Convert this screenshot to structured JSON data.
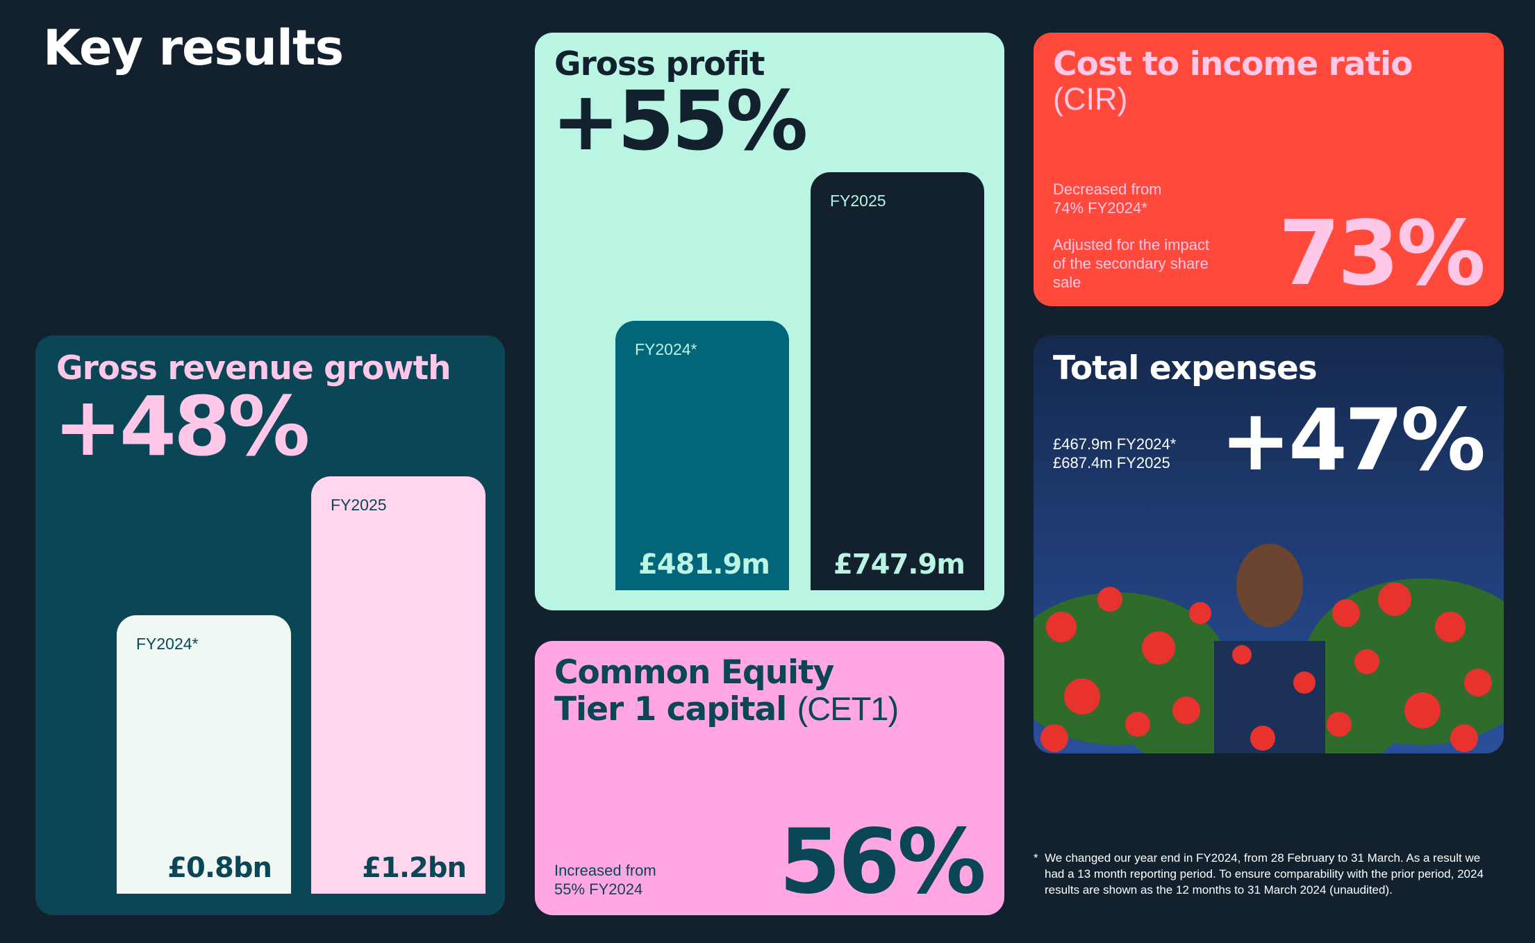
{
  "title": "Key results",
  "gross_revenue": {
    "title": "Gross revenue growth",
    "change": "+48%",
    "bars": [
      {
        "label": "FY2024*",
        "value": 0.8,
        "value_label": "£0.8bn"
      },
      {
        "label": "FY2025",
        "value": 1.2,
        "value_label": "£1.2bn"
      }
    ]
  },
  "gross_profit": {
    "title": "Gross profit",
    "change": "+55%",
    "bars": [
      {
        "label": "FY2024*",
        "value": 481.9,
        "value_label": "£481.9m"
      },
      {
        "label": "FY2025",
        "value": 747.9,
        "value_label": "£747.9m"
      }
    ]
  },
  "cir": {
    "title": "Cost to income ratio",
    "subtitle": "(CIR)",
    "note1": "Decreased from 74% FY2024*",
    "note2": "Adjusted for the impact of the secondary share sale",
    "value": "73%"
  },
  "expenses": {
    "title": "Total expenses",
    "lines": [
      "£467.9m FY2024*",
      "£687.4m FY2025"
    ],
    "value": "+47%"
  },
  "cet1": {
    "title_line1": "Common Equity",
    "title_line2": "Tier 1 capital",
    "title_suffix": "(CET1)",
    "note": "Increased from 55% FY2024",
    "value": "56%"
  },
  "footnote": "We changed our year end in FY2024, from 28 February to 31 March. As a result we had a 13 month reporting period. To ensure comparability with the prior period, 2024 results are shown as the 12 months to 31 March 2024 (unaudited)."
}
